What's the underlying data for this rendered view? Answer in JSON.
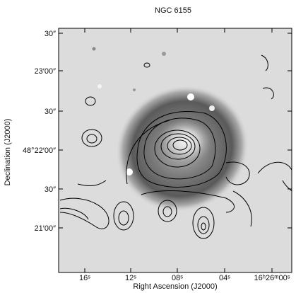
{
  "figure": {
    "title": "NGC 6155",
    "x_axis": {
      "label": "Right Ascension (J2000)",
      "ticks": [
        "16ˢ",
        "12ˢ",
        "08ˢ",
        "04ˢ",
        "16ʰ26ᵐ00ˢ"
      ]
    },
    "y_axis": {
      "label": "Declination (J2000)",
      "ticks": [
        "30″",
        "23′00″",
        "30″",
        "48°22′00″",
        "30″",
        "21′00″"
      ]
    }
  }
}
